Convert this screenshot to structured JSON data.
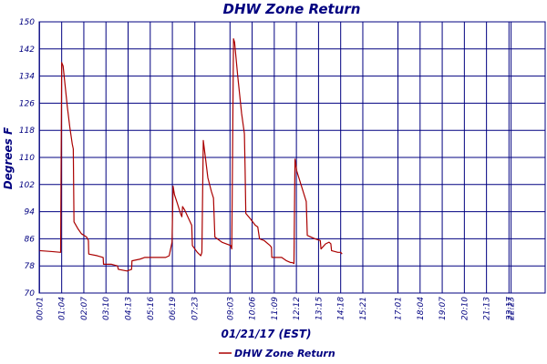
{
  "chart_data": {
    "type": "line",
    "title": "DHW Zone Return",
    "xlabel": "01/21/17 (EST)",
    "ylabel": "Degrees F",
    "ylim": [
      70,
      150
    ],
    "yticks": [
      70,
      78,
      86,
      94,
      102,
      110,
      118,
      126,
      134,
      142,
      150
    ],
    "xlim": [
      0,
      1440
    ],
    "xticks": [
      {
        "t": 1,
        "label": "00:01"
      },
      {
        "t": 64,
        "label": "01:04"
      },
      {
        "t": 127,
        "label": "02:07"
      },
      {
        "t": 190,
        "label": "03:10"
      },
      {
        "t": 253,
        "label": "04:13"
      },
      {
        "t": 316,
        "label": "05:16"
      },
      {
        "t": 379,
        "label": "06:19"
      },
      {
        "t": 443,
        "label": "07:23"
      },
      {
        "t": 543,
        "label": "09:03"
      },
      {
        "t": 606,
        "label": "10:06"
      },
      {
        "t": 669,
        "label": "11:09"
      },
      {
        "t": 732,
        "label": "12:12"
      },
      {
        "t": 795,
        "label": "13:15"
      },
      {
        "t": 858,
        "label": "14:18"
      },
      {
        "t": 921,
        "label": "15:21"
      },
      {
        "t": 1021,
        "label": "17:01"
      },
      {
        "t": 1084,
        "label": "18:04"
      },
      {
        "t": 1147,
        "label": "19:07"
      },
      {
        "t": 1210,
        "label": "20:10"
      },
      {
        "t": 1273,
        "label": "21:13"
      },
      {
        "t": 1337,
        "label": "22:17"
      },
      {
        "t": 1343,
        "label": "22:23"
      }
    ],
    "grid": true,
    "legend_position": "bottom-center",
    "colors": {
      "line": "#aa0000",
      "grid": "#000080",
      "text": "#000080"
    },
    "series": [
      {
        "name": "DHW Zone Return",
        "points": [
          [
            1,
            82.5
          ],
          [
            40,
            82.2
          ],
          [
            61,
            82.0
          ],
          [
            64,
            138.0
          ],
          [
            68,
            137.0
          ],
          [
            72,
            133.0
          ],
          [
            80,
            125.0
          ],
          [
            87,
            119.0
          ],
          [
            94,
            114.0
          ],
          [
            97,
            112.5
          ],
          [
            99,
            91.0
          ],
          [
            110,
            89.0
          ],
          [
            120,
            87.5
          ],
          [
            135,
            86.5
          ],
          [
            140,
            85.5
          ],
          [
            141,
            81.5
          ],
          [
            165,
            81.0
          ],
          [
            182,
            80.5
          ],
          [
            183,
            78.5
          ],
          [
            205,
            78.5
          ],
          [
            223,
            78.0
          ],
          [
            225,
            77.0
          ],
          [
            250,
            76.5
          ],
          [
            263,
            77.0
          ],
          [
            264,
            79.5
          ],
          [
            287,
            80.0
          ],
          [
            300,
            80.5
          ],
          [
            330,
            80.5
          ],
          [
            360,
            80.5
          ],
          [
            370,
            81.0
          ],
          [
            378,
            85.0
          ],
          [
            381,
            101.5
          ],
          [
            385,
            99.0
          ],
          [
            393,
            96.5
          ],
          [
            402,
            93.5
          ],
          [
            406,
            92.5
          ],
          [
            408,
            95.5
          ],
          [
            414,
            94.5
          ],
          [
            425,
            92.0
          ],
          [
            434,
            90.0
          ],
          [
            436,
            84.0
          ],
          [
            450,
            82.0
          ],
          [
            455,
            81.5
          ],
          [
            460,
            81.0
          ],
          [
            463,
            82.0
          ],
          [
            467,
            115.0
          ],
          [
            473,
            110.0
          ],
          [
            480,
            104.0
          ],
          [
            490,
            100.0
          ],
          [
            496,
            98.0
          ],
          [
            500,
            86.5
          ],
          [
            520,
            85.0
          ],
          [
            545,
            84.0
          ],
          [
            548,
            83.0
          ],
          [
            553,
            145.0
          ],
          [
            556,
            144.0
          ],
          [
            565,
            134.0
          ],
          [
            576,
            123.0
          ],
          [
            584,
            117.0
          ],
          [
            586,
            106.5
          ],
          [
            588,
            93.5
          ],
          [
            600,
            92.0
          ],
          [
            615,
            90.0
          ],
          [
            622,
            89.5
          ],
          [
            627,
            86.0
          ],
          [
            640,
            85.5
          ],
          [
            657,
            84.0
          ],
          [
            661,
            83.5
          ],
          [
            662,
            80.5
          ],
          [
            680,
            80.5
          ],
          [
            690,
            80.5
          ],
          [
            704,
            79.5
          ],
          [
            715,
            79.0
          ],
          [
            720,
            79.0
          ],
          [
            725,
            78.7
          ],
          [
            728,
            109.5
          ],
          [
            733,
            106.0
          ],
          [
            745,
            102.0
          ],
          [
            757,
            98.0
          ],
          [
            760,
            97.0
          ],
          [
            763,
            87.0
          ],
          [
            785,
            86.0
          ],
          [
            800,
            85.5
          ],
          [
            802,
            83.0
          ],
          [
            815,
            84.5
          ],
          [
            825,
            85.0
          ],
          [
            830,
            84.5
          ],
          [
            832,
            82.5
          ],
          [
            850,
            82.0
          ],
          [
            858,
            82.0
          ],
          [
            862,
            81.5
          ]
        ]
      }
    ]
  }
}
